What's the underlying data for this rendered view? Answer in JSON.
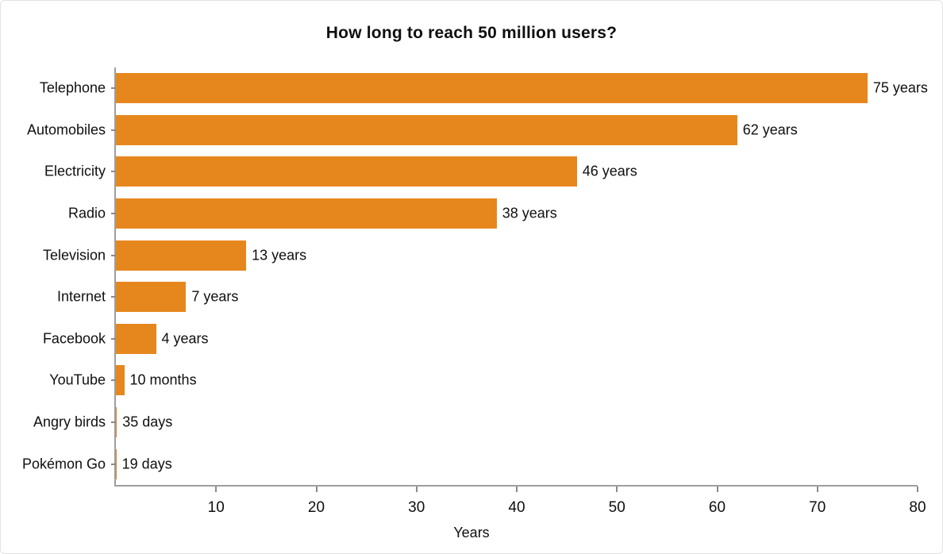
{
  "page": {
    "background": "#ffffff",
    "border_color": "#e3e3e3"
  },
  "chart_data": {
    "type": "bar",
    "orientation": "horizontal",
    "title": "How long to reach 50 million users?",
    "xlabel": "Years",
    "ylabel": "",
    "xlim": [
      0,
      80
    ],
    "x_ticks": [
      10,
      20,
      30,
      40,
      50,
      60,
      70,
      80
    ],
    "grid": false,
    "legend": "none",
    "bar_color": "#E6871E",
    "axis_color": "#9e9e9e",
    "tick_color": "#8a8a8a",
    "text_color": "#0f0f0f",
    "categories": [
      "Telephone",
      "Automobiles",
      "Electricity",
      "Radio",
      "Television",
      "Internet",
      "Facebook",
      "YouTube",
      "Angry birds",
      "Pokémon Go"
    ],
    "values_years": [
      75,
      62,
      46,
      38,
      13,
      7,
      4,
      0.833,
      0.096,
      0.052
    ],
    "value_labels": [
      "75 years",
      "62 years",
      "46 years",
      "38 years",
      "13 years",
      "7 years",
      "4 years",
      "10 months",
      "35 days",
      "19 days"
    ]
  }
}
